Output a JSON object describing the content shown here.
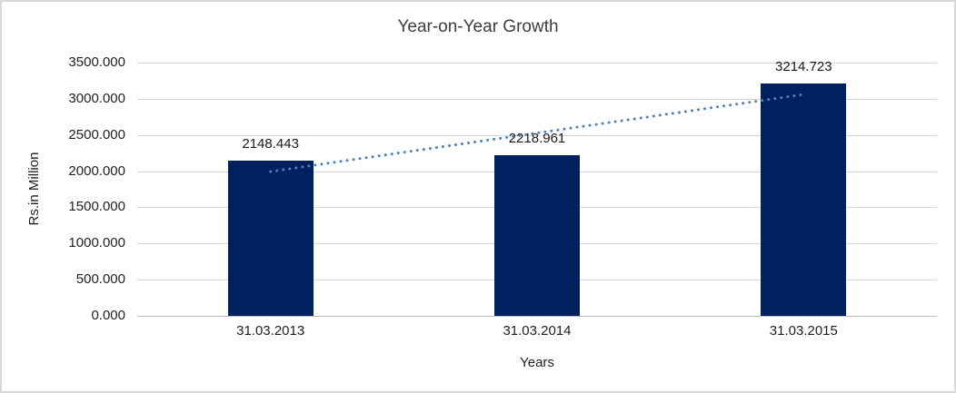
{
  "window": {
    "background": "#ffffff",
    "border_color": "#d8d8d8"
  },
  "chart_data": {
    "type": "bar",
    "title": "Year-on-Year Growth",
    "xlabel": "Years",
    "ylabel": "Rs.in Million",
    "categories": [
      "31.03.2013",
      "31.03.2014",
      "31.03.2015"
    ],
    "values": [
      2148.443,
      2218.961,
      3214.723
    ],
    "data_labels": [
      "2148.443",
      "2218.961",
      "3214.723"
    ],
    "ylim": [
      0,
      3500
    ],
    "ytick_step": 500,
    "ytick_labels": [
      "0.000",
      "500.000",
      "1000.000",
      "1500.000",
      "2000.000",
      "2500.000",
      "3000.000",
      "3500.000"
    ],
    "grid": true,
    "legend": false,
    "bar_color": "#002060",
    "text_color": "#1f1f1f",
    "gridline_color": "#d9d9d9",
    "trendline": {
      "type": "linear",
      "style": "dotted",
      "color": "#4E81BD",
      "endpoint_values": [
        1994.236,
        3060.516
      ]
    }
  }
}
